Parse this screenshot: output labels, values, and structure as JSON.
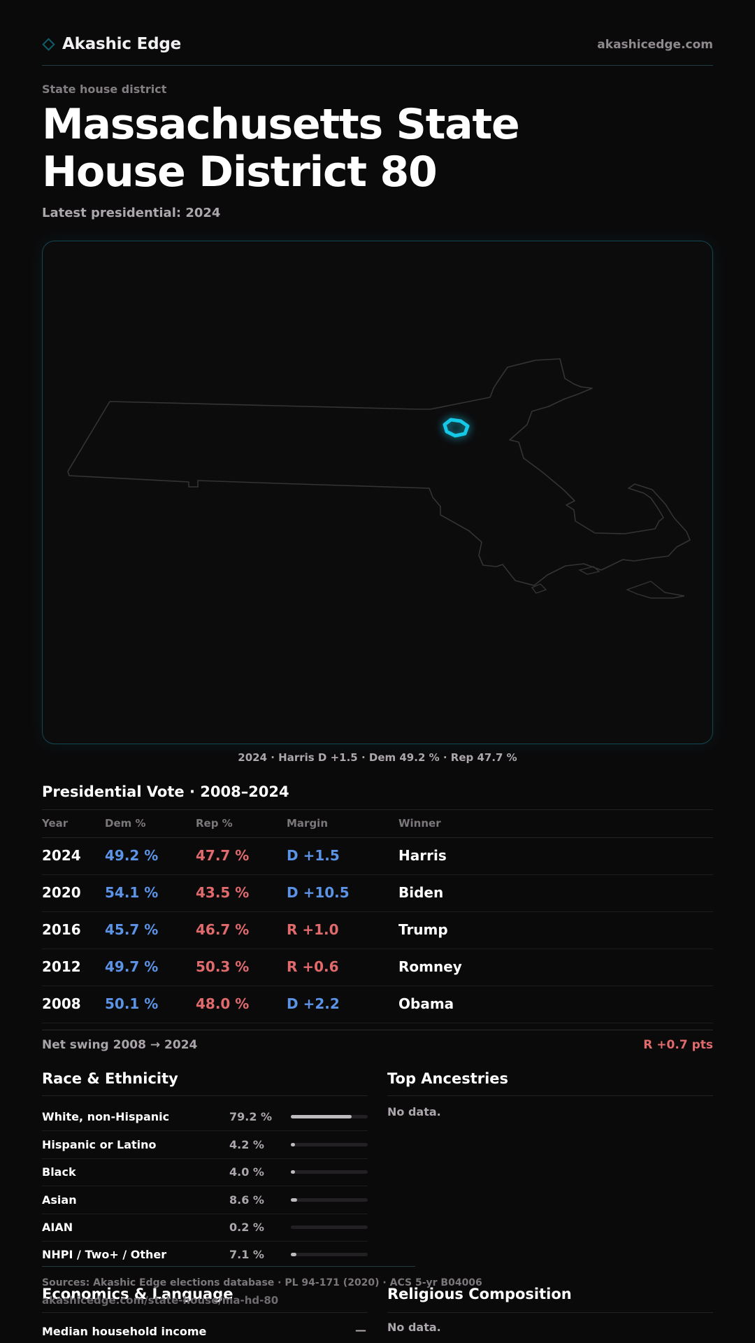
{
  "header": {
    "brand_icon": "diamond-outline-icon",
    "brand_name": "Akashic Edge",
    "site": "akashicedge.com"
  },
  "page": {
    "eyebrow": "State house district",
    "title": "Massachusetts State House District 80",
    "subtitle": "Latest presidential: 2024"
  },
  "map": {
    "caption": "2024 · Harris D +1.5 · Dem 49.2 % · Rep 47.7 %",
    "highlight_color": "#14c8e6",
    "outline_color": "#3a3838"
  },
  "presidential": {
    "title": "Presidential Vote · 2008–2024",
    "columns": {
      "year": "Year",
      "dem": "Dem %",
      "rep": "Rep %",
      "margin": "Margin",
      "winner": "Winner"
    },
    "rows": [
      {
        "year": "2024",
        "dem": "49.2 %",
        "rep": "47.7 %",
        "margin": "D +1.5",
        "party": "D",
        "winner": "Harris"
      },
      {
        "year": "2020",
        "dem": "54.1 %",
        "rep": "43.5 %",
        "margin": "D +10.5",
        "party": "D",
        "winner": "Biden"
      },
      {
        "year": "2016",
        "dem": "45.7 %",
        "rep": "46.7 %",
        "margin": "R +1.0",
        "party": "R",
        "winner": "Trump"
      },
      {
        "year": "2012",
        "dem": "49.7 %",
        "rep": "50.3 %",
        "margin": "R +0.6",
        "party": "R",
        "winner": "Romney"
      },
      {
        "year": "2008",
        "dem": "50.1 %",
        "rep": "48.0 %",
        "margin": "D +2.2",
        "party": "D",
        "winner": "Obama"
      }
    ],
    "swing_label": "Net swing 2008 → 2024",
    "swing_value": "R +0.7 pts"
  },
  "colors": {
    "dem": "#5b93e6",
    "rep": "#e06a6c"
  },
  "race": {
    "title": "Race & Ethnicity",
    "rows": [
      {
        "label": "White, non-Hispanic",
        "pct": "79.2 %",
        "share": 0.792
      },
      {
        "label": "Hispanic or Latino",
        "pct": "4.2 %",
        "share": 0.042
      },
      {
        "label": "Black",
        "pct": "4.0 %",
        "share": 0.04
      },
      {
        "label": "Asian",
        "pct": "8.6 %",
        "share": 0.086
      },
      {
        "label": "AIAN",
        "pct": "0.2 %",
        "share": 0.002
      },
      {
        "label": "NHPI / Two+ / Other",
        "pct": "7.1 %",
        "share": 0.071
      }
    ]
  },
  "ancestries": {
    "title": "Top Ancestries",
    "empty": "No data."
  },
  "economics": {
    "title": "Economics & Language",
    "median_income_label": "Median household income",
    "median_income_value": "—"
  },
  "religion": {
    "title": "Religious Composition",
    "empty": "No data."
  },
  "footer": {
    "sources": "Sources: Akashic Edge elections database · PL 94-171 (2020) · ACS 5-yr B04006",
    "url": "akashicedge.com/state-house/ma-hd-80"
  }
}
